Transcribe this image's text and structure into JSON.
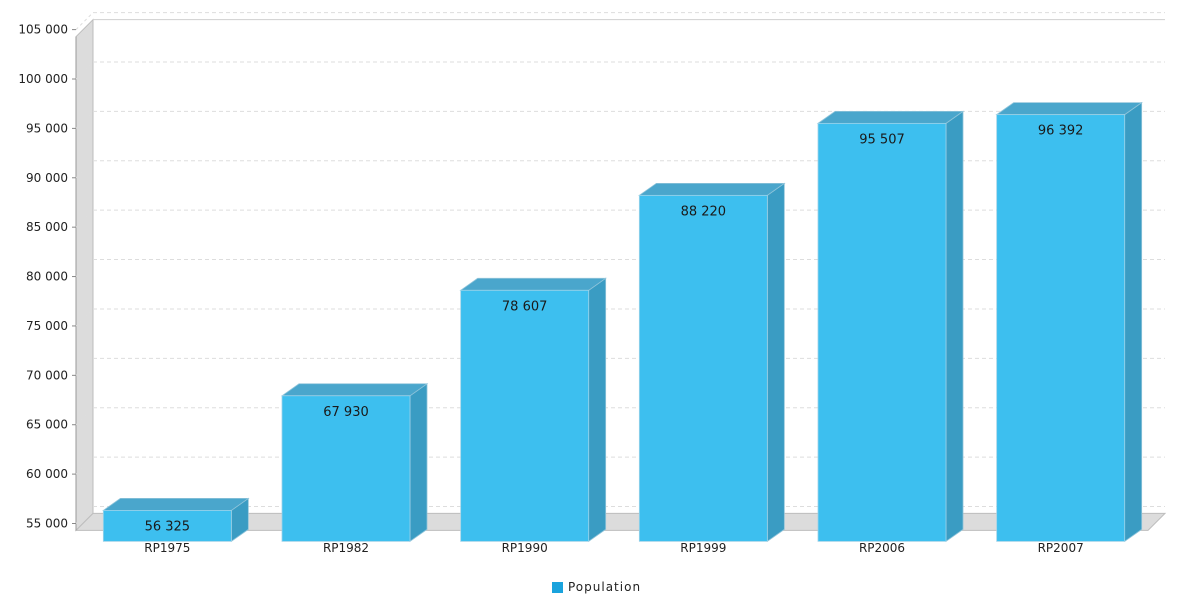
{
  "chart_data": {
    "type": "bar",
    "categories": [
      "RP1975",
      "RP1982",
      "RP1990",
      "RP1999",
      "RP2006",
      "RP2007"
    ],
    "series": [
      {
        "name": "Population",
        "values": [
          56325,
          67930,
          78607,
          88220,
          95507,
          96392
        ],
        "color": "#3dbfef"
      }
    ],
    "data_labels": [
      "56 325",
      "67 930",
      "78 607",
      "88 220",
      "95 507",
      "96 392"
    ],
    "y_ticks": [
      55000,
      60000,
      65000,
      70000,
      75000,
      80000,
      85000,
      90000,
      95000,
      100000,
      105000
    ],
    "y_tick_labels": [
      "55 000",
      "60 000",
      "65 000",
      "70 000",
      "75 000",
      "80 000",
      "85 000",
      "90 000",
      "95 000",
      "100 000",
      "105 000"
    ],
    "ylim": [
      54000,
      105500
    ],
    "grid": true,
    "legend_position": "bottom-center",
    "style": "3d-bar",
    "title": "",
    "xlabel": "",
    "ylabel": ""
  },
  "colors": {
    "bar_front": "#3dbfef",
    "bar_side": "#3a9cc3",
    "bar_top": "#4aa6cc",
    "wall": "#dcdcdc",
    "grid": "#dddddd"
  }
}
